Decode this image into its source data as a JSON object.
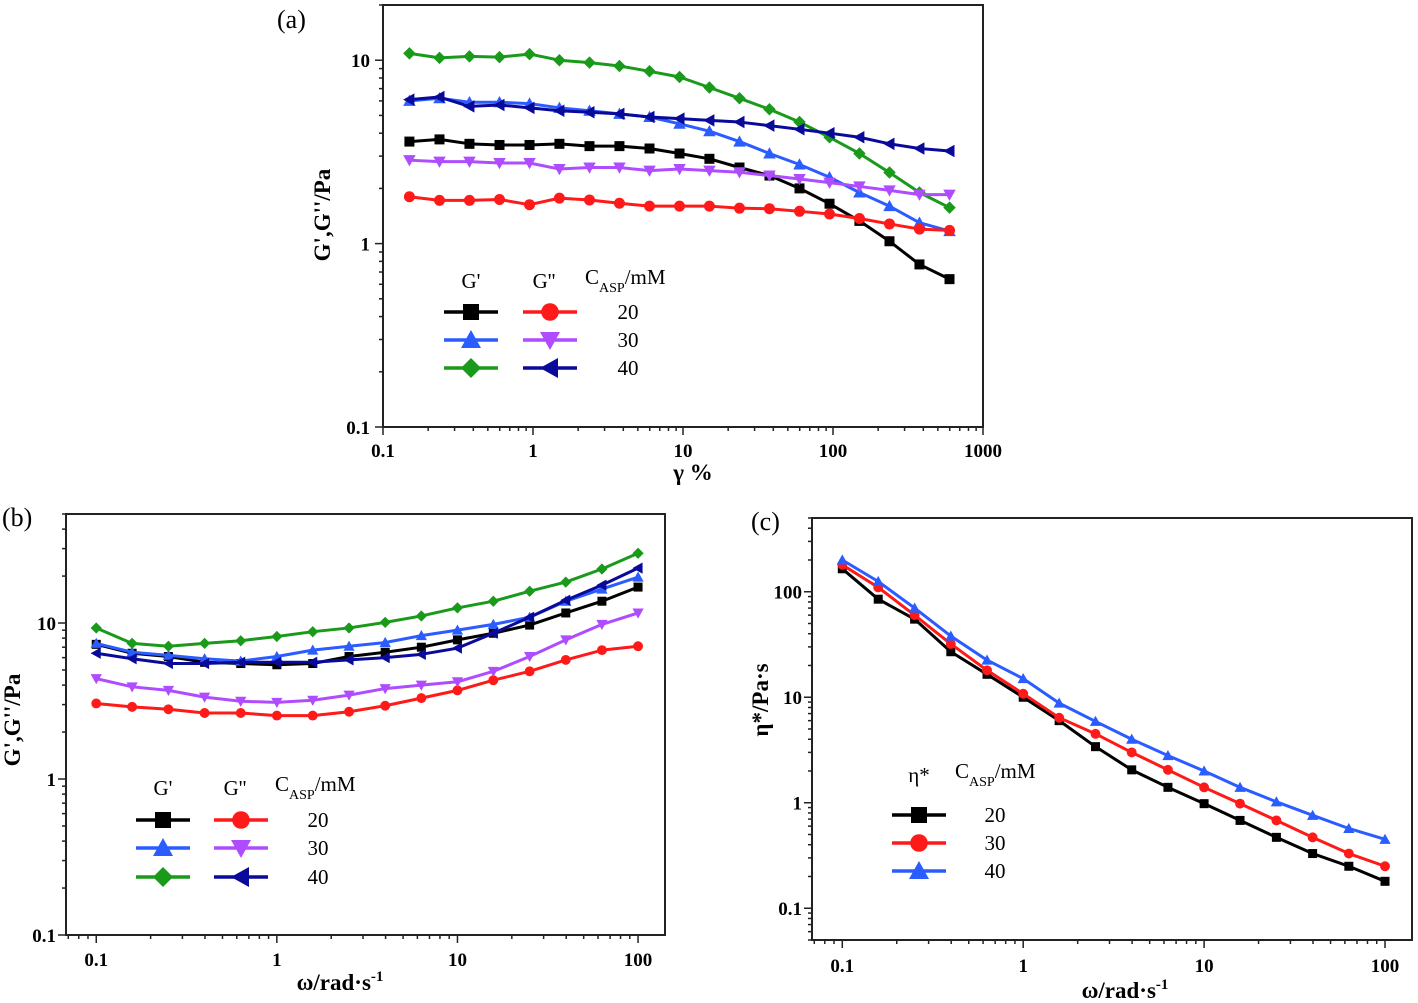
{
  "chart_data": [
    {
      "panel_label": "(a)",
      "type": "line",
      "xlabel": "γ %",
      "ylabel": "G',G''/Pa",
      "x_scale": "log",
      "y_scale": "log",
      "xlim": [
        0.1,
        1000
      ],
      "ylim": [
        0.1,
        20
      ],
      "xticks": [
        "0.1",
        "1",
        "10",
        "100",
        "1000"
      ],
      "yticks": [
        "0.1",
        "1",
        "10"
      ],
      "grid": false,
      "legend": {
        "placement": "lower-left",
        "headers": [
          "G'",
          "G''"
        ],
        "conc_main": "C",
        "conc_sub": "ASP",
        "conc_unit": "/mM",
        "values": [
          "20",
          "30",
          "40"
        ]
      },
      "x": [
        0.15,
        0.238,
        0.377,
        0.598,
        0.948,
        1.5,
        2.38,
        3.77,
        5.98,
        9.48,
        15,
        23.8,
        37.7,
        59.8,
        94.8,
        150,
        238,
        377,
        598
      ],
      "series": [
        {
          "column": "G'",
          "conc": "20",
          "color": "#000000",
          "marker": "square",
          "values": [
            3.6,
            3.7,
            3.5,
            3.45,
            3.45,
            3.5,
            3.4,
            3.4,
            3.3,
            3.1,
            2.9,
            2.6,
            2.35,
            2.0,
            1.65,
            1.33,
            1.03,
            0.77,
            0.64
          ]
        },
        {
          "column": "G'",
          "conc": "30",
          "color": "#2a5cff",
          "marker": "triangle-up",
          "values": [
            6.0,
            6.2,
            5.9,
            5.9,
            5.8,
            5.5,
            5.3,
            5.1,
            4.9,
            4.5,
            4.1,
            3.6,
            3.1,
            2.7,
            2.3,
            1.9,
            1.6,
            1.3,
            1.17
          ]
        },
        {
          "column": "G'",
          "conc": "40",
          "color": "#1a9a1a",
          "marker": "diamond",
          "values": [
            10.9,
            10.3,
            10.5,
            10.4,
            10.8,
            10.0,
            9.7,
            9.3,
            8.7,
            8.1,
            7.1,
            6.2,
            5.4,
            4.6,
            3.8,
            3.1,
            2.44,
            1.9,
            1.57
          ]
        },
        {
          "column": "G''",
          "conc": "20",
          "color": "#ff1a1a",
          "marker": "circle",
          "values": [
            1.8,
            1.72,
            1.72,
            1.74,
            1.63,
            1.77,
            1.73,
            1.66,
            1.6,
            1.6,
            1.6,
            1.56,
            1.55,
            1.5,
            1.45,
            1.37,
            1.28,
            1.2,
            1.18
          ]
        },
        {
          "column": "G''",
          "conc": "30",
          "color": "#b04cff",
          "marker": "triangle-down",
          "values": [
            2.85,
            2.8,
            2.8,
            2.75,
            2.75,
            2.55,
            2.6,
            2.6,
            2.5,
            2.55,
            2.5,
            2.45,
            2.35,
            2.25,
            2.15,
            2.05,
            1.95,
            1.85,
            1.85
          ]
        },
        {
          "column": "G''",
          "conc": "40",
          "color": "#0a0a9a",
          "marker": "triangle-left",
          "values": [
            6.1,
            6.3,
            5.6,
            5.7,
            5.5,
            5.3,
            5.2,
            5.1,
            4.9,
            4.8,
            4.7,
            4.6,
            4.4,
            4.2,
            4.0,
            3.8,
            3.5,
            3.3,
            3.2
          ]
        }
      ]
    },
    {
      "panel_label": "(b)",
      "type": "line",
      "xlabel": "ω/rad·s",
      "xlabel_sup": "-1",
      "ylabel": "G',G''/Pa",
      "x_scale": "log",
      "y_scale": "log",
      "xlim": [
        0.068,
        141
      ],
      "ylim": [
        0.1,
        50
      ],
      "xticks": [
        "0.1",
        "1",
        "10",
        "100"
      ],
      "yticks": [
        "0.1",
        "1",
        "10"
      ],
      "grid": false,
      "legend": {
        "placement": "lower-left",
        "headers": [
          "G'",
          "G''"
        ],
        "conc_main": "C",
        "conc_sub": "ASP",
        "conc_unit": "/mM",
        "values": [
          "20",
          "30",
          "40"
        ]
      },
      "x": [
        0.1,
        0.158,
        0.251,
        0.398,
        0.631,
        1,
        1.58,
        2.51,
        3.98,
        6.31,
        10,
        15.8,
        25.1,
        39.8,
        63.1,
        100
      ],
      "series": [
        {
          "column": "G'",
          "conc": "20",
          "color": "#000000",
          "marker": "square",
          "values": [
            7.3,
            6.4,
            6.1,
            5.6,
            5.5,
            5.4,
            5.5,
            6.1,
            6.5,
            7.0,
            7.8,
            8.6,
            9.7,
            11.6,
            13.8,
            17.0
          ]
        },
        {
          "column": "G'",
          "conc": "30",
          "color": "#2a5cff",
          "marker": "triangle-up",
          "values": [
            7.4,
            6.5,
            6.2,
            5.9,
            5.7,
            6.1,
            6.7,
            7.1,
            7.5,
            8.3,
            9.0,
            9.8,
            10.9,
            13.8,
            16.5,
            19.7
          ]
        },
        {
          "column": "G'",
          "conc": "40",
          "color": "#1a9a1a",
          "marker": "diamond",
          "values": [
            9.3,
            7.4,
            7.1,
            7.4,
            7.7,
            8.2,
            8.8,
            9.3,
            10.1,
            11.1,
            12.5,
            13.8,
            16.0,
            18.3,
            22.2,
            28.0
          ]
        },
        {
          "column": "G''",
          "conc": "20",
          "color": "#ff1a1a",
          "marker": "circle",
          "values": [
            3.05,
            2.9,
            2.8,
            2.65,
            2.65,
            2.55,
            2.55,
            2.7,
            2.95,
            3.3,
            3.7,
            4.3,
            4.9,
            5.8,
            6.7,
            7.1
          ]
        },
        {
          "column": "G''",
          "conc": "30",
          "color": "#b04cff",
          "marker": "triangle-down",
          "values": [
            4.4,
            3.9,
            3.7,
            3.35,
            3.15,
            3.1,
            3.2,
            3.45,
            3.8,
            4.0,
            4.2,
            4.9,
            6.1,
            7.8,
            9.8,
            11.6
          ]
        },
        {
          "column": "G''",
          "conc": "40",
          "color": "#0a0a9a",
          "marker": "triangle-left",
          "values": [
            6.4,
            5.9,
            5.5,
            5.5,
            5.6,
            5.6,
            5.6,
            5.8,
            6.0,
            6.3,
            6.9,
            8.6,
            10.9,
            14.0,
            17.5,
            22.5
          ]
        }
      ]
    },
    {
      "panel_label": "(c)",
      "type": "line",
      "xlabel": "ω/rad·s",
      "xlabel_sup": "-1",
      "ylabel": "η*/Pa·s",
      "x_scale": "log",
      "y_scale": "log",
      "xlim": [
        0.068,
        141
      ],
      "ylim": [
        0.05,
        500
      ],
      "xticks": [
        "0.1",
        "1",
        "10",
        "100"
      ],
      "yticks": [
        "0.1",
        "1",
        "10",
        "100"
      ],
      "grid": false,
      "legend": {
        "placement": "lower-left",
        "headers": [
          "η*"
        ],
        "conc_main": "C",
        "conc_sub": "ASP",
        "conc_unit": "/mM",
        "values": [
          "20",
          "30",
          "40"
        ]
      },
      "x": [
        0.1,
        0.158,
        0.251,
        0.398,
        0.631,
        1,
        1.58,
        2.51,
        3.98,
        6.31,
        10,
        15.8,
        25.1,
        39.8,
        63.1,
        100
      ],
      "series": [
        {
          "column": "η*",
          "conc": "20",
          "color": "#000000",
          "marker": "square",
          "values": [
            165,
            85,
            55,
            27,
            16.5,
            10,
            6,
            3.4,
            2.05,
            1.4,
            0.98,
            0.68,
            0.47,
            0.33,
            0.25,
            0.18
          ]
        },
        {
          "column": "η*",
          "conc": "30",
          "color": "#ff1a1a",
          "marker": "circle",
          "values": [
            180,
            110,
            60,
            32,
            18,
            10.8,
            6.4,
            4.5,
            3.0,
            2.05,
            1.4,
            0.98,
            0.68,
            0.47,
            0.33,
            0.25
          ]
        },
        {
          "column": "η*",
          "conc": "40",
          "color": "#2a5cff",
          "marker": "triangle-up",
          "values": [
            200,
            125,
            70,
            38,
            22.5,
            15,
            8.8,
            5.9,
            4.0,
            2.8,
            2.0,
            1.4,
            1.02,
            0.76,
            0.57,
            0.45
          ]
        }
      ]
    }
  ]
}
